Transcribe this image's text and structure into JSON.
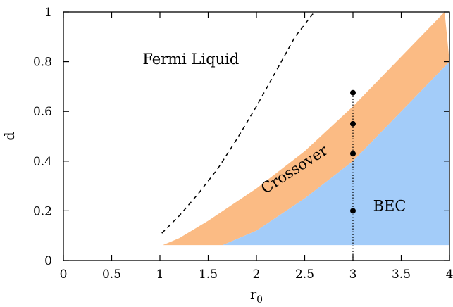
{
  "chart_data": {
    "type": "area",
    "title": "",
    "xlabel": "r",
    "xlabel_subscript": "0",
    "ylabel": "d",
    "xlim": [
      0,
      4
    ],
    "ylim": [
      0,
      1
    ],
    "xticks": [
      "0",
      "0.5",
      "1",
      "1.5",
      "2",
      "2.5",
      "3",
      "3.5",
      "4"
    ],
    "yticks": [
      "0",
      "0.2",
      "0.4",
      "0.6",
      "0.8",
      "1"
    ],
    "grid": false,
    "colors": {
      "crossover": "#fbbb84",
      "bec": "#a3ccf9",
      "white": "#ffffff"
    },
    "regions": [
      {
        "name": "Crossover",
        "color": "crossover",
        "upper": [
          [
            1.03,
            0.062
          ],
          [
            1.2,
            0.09
          ],
          [
            1.5,
            0.16
          ],
          [
            2.0,
            0.29
          ],
          [
            2.5,
            0.44
          ],
          [
            3.0,
            0.62
          ],
          [
            3.5,
            0.82
          ],
          [
            3.95,
            1.0
          ]
        ],
        "lower": [
          [
            1.65,
            0.062
          ],
          [
            2.0,
            0.12
          ],
          [
            2.5,
            0.25
          ],
          [
            3.0,
            0.4
          ],
          [
            3.5,
            0.6
          ],
          [
            4.0,
            0.8
          ]
        ]
      },
      {
        "name": "BEC",
        "color": "bec",
        "upper": [
          [
            1.65,
            0.062
          ],
          [
            2.0,
            0.12
          ],
          [
            2.5,
            0.25
          ],
          [
            3.0,
            0.4
          ],
          [
            3.5,
            0.6
          ],
          [
            4.0,
            0.8
          ]
        ],
        "lower": [
          [
            4.0,
            0.062
          ]
        ]
      }
    ],
    "series": [
      {
        "style": "dashed",
        "color": "#000000",
        "x": [
          1.02,
          1.2,
          1.4,
          1.6,
          1.8,
          2.0,
          2.2,
          2.4,
          2.6
        ],
        "y": [
          0.11,
          0.18,
          0.27,
          0.37,
          0.49,
          0.62,
          0.76,
          0.9,
          1.0
        ]
      },
      {
        "style": "dotted",
        "color": "#000000",
        "x": [
          3.0,
          3.0
        ],
        "y": [
          0.0,
          0.675
        ]
      },
      {
        "style": "markers",
        "color": "#000000",
        "x": [
          3.0,
          3.0,
          3.0,
          3.0
        ],
        "y": [
          0.675,
          0.55,
          0.43,
          0.2
        ]
      }
    ],
    "annotations": [
      {
        "text": "Fermi Liquid",
        "x": 1.32,
        "y": 0.79
      },
      {
        "text": "Crossover",
        "x": 2.42,
        "y": 0.35,
        "rotation": -33
      },
      {
        "text": "BEC",
        "x": 3.38,
        "y": 0.2
      }
    ]
  }
}
